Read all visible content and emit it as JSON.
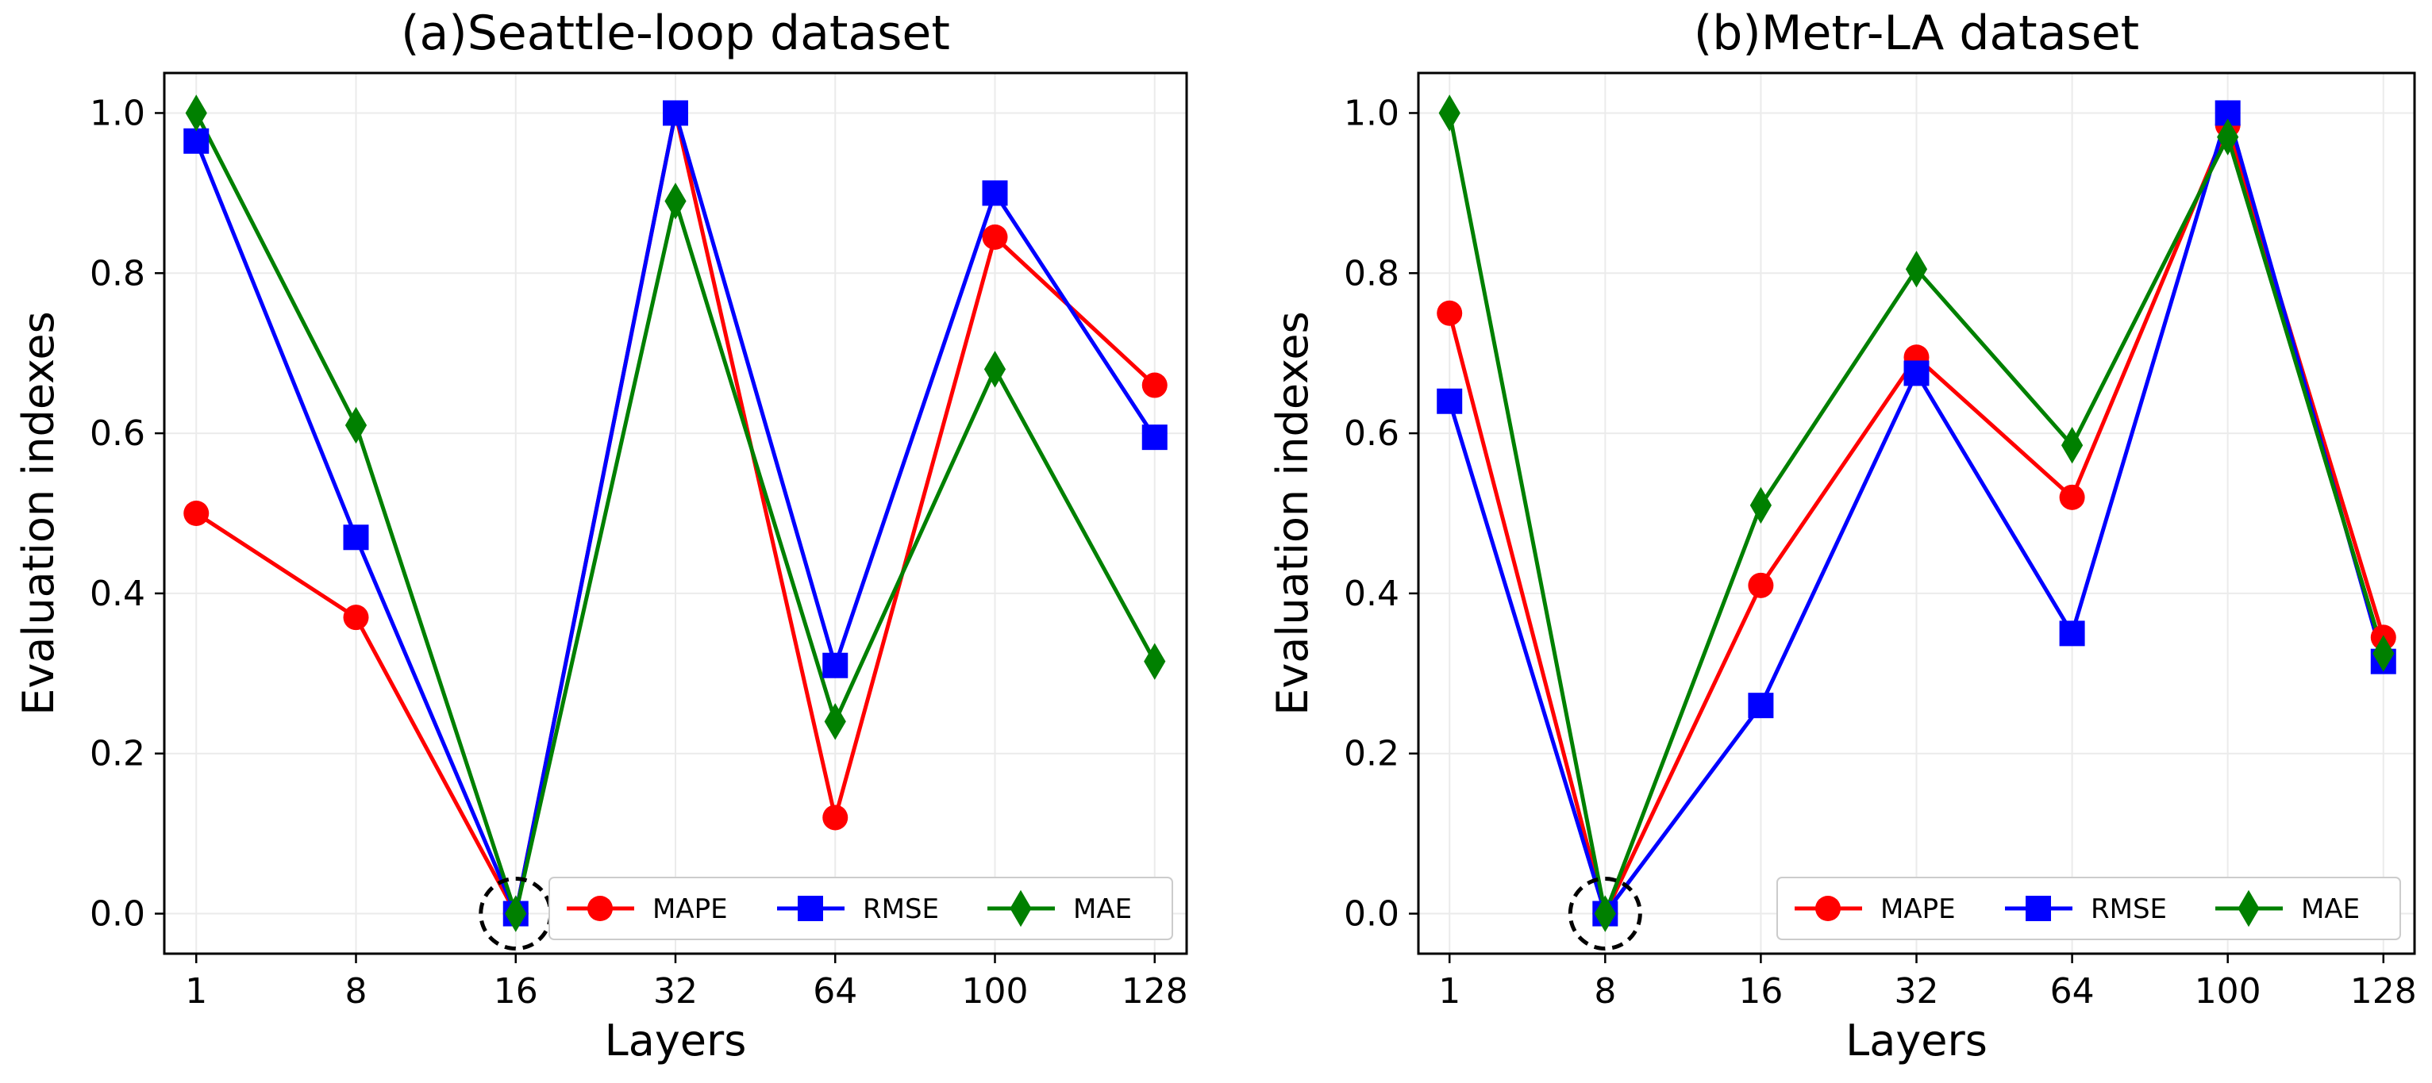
{
  "chart_data": [
    {
      "type": "line",
      "title": "(a)Seattle-loop dataset",
      "xlabel": "Layers",
      "ylabel": "Evaluation indexes",
      "categories": [
        "1",
        "8",
        "16",
        "32",
        "64",
        "100",
        "128"
      ],
      "ylim": [
        -0.05,
        1.05
      ],
      "yticks": [
        "0.0",
        "0.2",
        "0.4",
        "0.6",
        "0.8",
        "1.0"
      ],
      "grid": true,
      "legend_position": "lower-right",
      "highlight_category_index": 2,
      "series": [
        {
          "name": "MAPE",
          "color": "#ff0000",
          "marker": "circle",
          "values": [
            0.5,
            0.37,
            0.0,
            1.0,
            0.12,
            0.845,
            0.66
          ]
        },
        {
          "name": "RMSE",
          "color": "#0000ff",
          "marker": "square",
          "values": [
            0.965,
            0.47,
            0.0,
            1.0,
            0.31,
            0.9,
            0.595
          ]
        },
        {
          "name": "MAE",
          "color": "#008000",
          "marker": "diamond",
          "values": [
            1.0,
            0.61,
            0.0,
            0.89,
            0.24,
            0.68,
            0.315
          ]
        }
      ]
    },
    {
      "type": "line",
      "title": "(b)Metr-LA dataset",
      "xlabel": "Layers",
      "ylabel": "Evaluation indexes",
      "categories": [
        "1",
        "8",
        "16",
        "32",
        "64",
        "100",
        "128"
      ],
      "ylim": [
        -0.05,
        1.05
      ],
      "yticks": [
        "0.0",
        "0.2",
        "0.4",
        "0.6",
        "0.8",
        "1.0"
      ],
      "grid": true,
      "legend_position": "lower-right",
      "highlight_category_index": 1,
      "series": [
        {
          "name": "MAPE",
          "color": "#ff0000",
          "marker": "circle",
          "values": [
            0.75,
            0.0,
            0.41,
            0.695,
            0.52,
            0.985,
            0.345
          ]
        },
        {
          "name": "RMSE",
          "color": "#0000ff",
          "marker": "square",
          "values": [
            0.64,
            0.0,
            0.26,
            0.675,
            0.35,
            1.0,
            0.315
          ]
        },
        {
          "name": "MAE",
          "color": "#008000",
          "marker": "diamond",
          "values": [
            1.0,
            0.0,
            0.51,
            0.805,
            0.585,
            0.97,
            0.325
          ]
        }
      ]
    }
  ]
}
